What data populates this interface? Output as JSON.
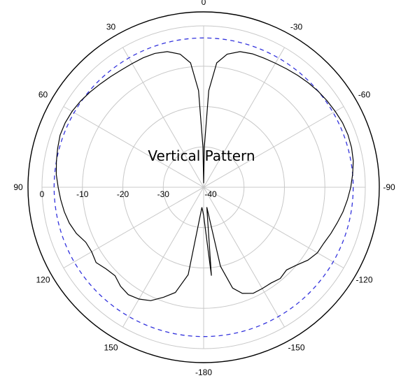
{
  "chart_data": {
    "type": "polar-line",
    "title": "Vertical Pattern",
    "angle_unit": "degrees",
    "angle_ticks": [
      {
        "value": 0,
        "label": "0"
      },
      {
        "value": -30,
        "label": "-30"
      },
      {
        "value": -60,
        "label": "-60"
      },
      {
        "value": -90,
        "label": "-90"
      },
      {
        "value": -120,
        "label": "-120"
      },
      {
        "value": -150,
        "label": "-150"
      },
      {
        "value": 180,
        "label": "-180"
      },
      {
        "value": 150,
        "label": "150"
      },
      {
        "value": 120,
        "label": "120"
      },
      {
        "value": 90,
        "label": "90"
      },
      {
        "value": 60,
        "label": "60"
      },
      {
        "value": 30,
        "label": "30"
      }
    ],
    "radial_axis": {
      "unit": "dB",
      "range": [
        -40,
        0
      ],
      "ticks": [
        0,
        -10,
        -20,
        -30,
        -40
      ],
      "tick_labels": [
        "0",
        "-10",
        "-20",
        "-30",
        "-40"
      ]
    },
    "reference_circle_db": -3,
    "grid": true,
    "colors": {
      "pattern": "#000000",
      "reference": "#3333dd",
      "grid": "#c8c8c8",
      "outer_circle": "#000000"
    },
    "series": [
      {
        "values": [
          [
            0,
            -39
          ],
          [
            1,
            -30
          ],
          [
            3,
            -16
          ],
          [
            6,
            -9
          ],
          [
            10,
            -6.5
          ],
          [
            15,
            -5.2
          ],
          [
            20,
            -4.7
          ],
          [
            25,
            -4.6
          ],
          [
            30,
            -4.6
          ],
          [
            35,
            -4.5
          ],
          [
            40,
            -4.2
          ],
          [
            45,
            -3.8
          ],
          [
            50,
            -3.3
          ],
          [
            55,
            -2.8
          ],
          [
            60,
            -2.4
          ],
          [
            65,
            -2.2
          ],
          [
            70,
            -2.2
          ],
          [
            75,
            -2.6
          ],
          [
            80,
            -3.0
          ],
          [
            85,
            -3.4
          ],
          [
            90,
            -4.0
          ],
          [
            95,
            -4.5
          ],
          [
            100,
            -5.0
          ],
          [
            105,
            -5.6
          ],
          [
            110,
            -6.5
          ],
          [
            115,
            -7.8
          ],
          [
            120,
            -8.0
          ],
          [
            125,
            -7.5
          ],
          [
            130,
            -8.5
          ],
          [
            135,
            -9.0
          ],
          [
            140,
            -8.0
          ],
          [
            145,
            -7.5
          ],
          [
            150,
            -8.0
          ],
          [
            155,
            -9.0
          ],
          [
            160,
            -11
          ],
          [
            165,
            -13
          ],
          [
            170,
            -18
          ],
          [
            175,
            -35
          ],
          [
            180,
            -33
          ],
          [
            -180,
            -33
          ],
          [
            -175,
            -18
          ],
          [
            -171,
            -35
          ],
          [
            -168,
            -20
          ],
          [
            -164,
            -14
          ],
          [
            -160,
            -12
          ],
          [
            -155,
            -11
          ],
          [
            -150,
            -11
          ],
          [
            -145,
            -11
          ],
          [
            -140,
            -10.5
          ],
          [
            -135,
            -11
          ],
          [
            -130,
            -10
          ],
          [
            -125,
            -8.5
          ],
          [
            -120,
            -7.5
          ],
          [
            -115,
            -7.2
          ],
          [
            -110,
            -6.5
          ],
          [
            -105,
            -5.8
          ],
          [
            -100,
            -5.0
          ],
          [
            -95,
            -4.3
          ],
          [
            -90,
            -3.6
          ],
          [
            -85,
            -3.0
          ],
          [
            -80,
            -2.4
          ],
          [
            -75,
            -2.1
          ],
          [
            -70,
            -2.0
          ],
          [
            -65,
            -2.1
          ],
          [
            -60,
            -2.4
          ],
          [
            -55,
            -2.7
          ],
          [
            -50,
            -3.0
          ],
          [
            -45,
            -3.4
          ],
          [
            -40,
            -3.8
          ],
          [
            -35,
            -4.2
          ],
          [
            -30,
            -4.5
          ],
          [
            -25,
            -4.7
          ],
          [
            -20,
            -4.8
          ],
          [
            -15,
            -5.2
          ],
          [
            -10,
            -6.5
          ],
          [
            -6,
            -9
          ],
          [
            -3,
            -16
          ],
          [
            -1,
            -30
          ]
        ]
      }
    ]
  }
}
